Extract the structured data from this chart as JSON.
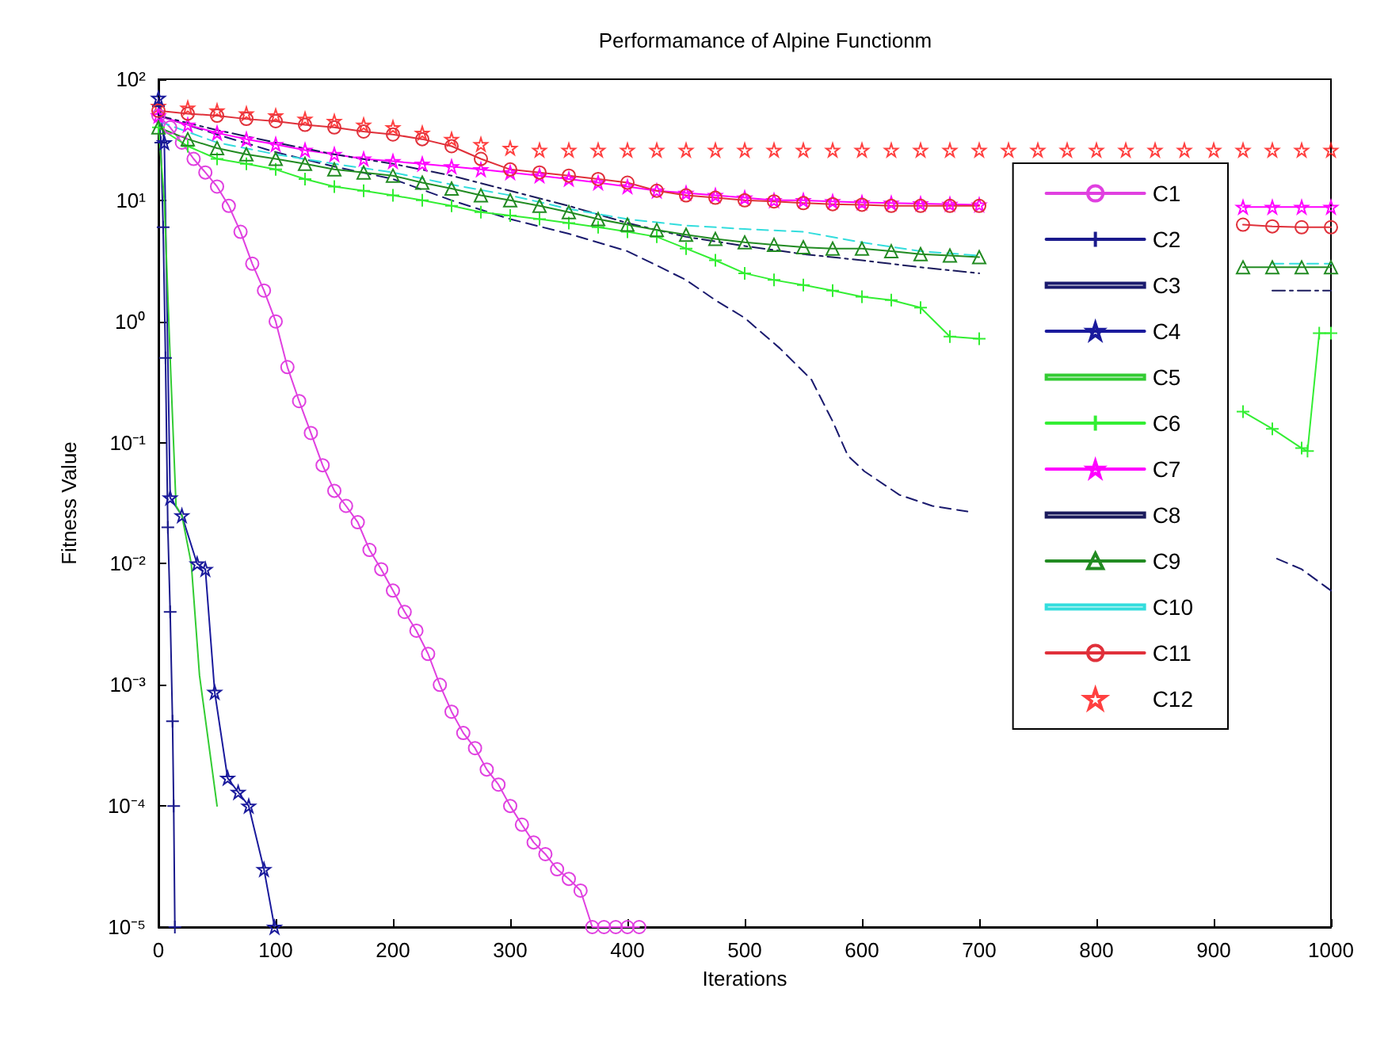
{
  "chart_data": {
    "type": "line",
    "title": "Performamance of Alpine Functionm",
    "xlabel": "Iterations",
    "ylabel": "Fitness Value",
    "xlim": [
      0,
      1000
    ],
    "xticks": [
      0,
      100,
      200,
      300,
      400,
      500,
      600,
      700,
      800,
      900,
      1000
    ],
    "ylim": [
      1e-05,
      100
    ],
    "yticks": [
      {
        "value": 1e-05,
        "label": "10⁻⁵"
      },
      {
        "value": 0.0001,
        "label": "10⁻⁴"
      },
      {
        "value": 0.001,
        "label": "10⁻³"
      },
      {
        "value": 0.01,
        "label": "10⁻²"
      },
      {
        "value": 0.1,
        "label": "10⁻¹"
      },
      {
        "value": 1,
        "label": "10⁰"
      },
      {
        "value": 10,
        "label": "10¹"
      },
      {
        "value": 100,
        "label": "10²"
      }
    ],
    "log": "y",
    "grid": false,
    "legend": "right",
    "series": [
      {
        "name": "C1",
        "color": "#e040e0",
        "marker": "circle",
        "line_style": "solid",
        "x": [
          0,
          10,
          20,
          30,
          40,
          50,
          60,
          70,
          80,
          90,
          100,
          110,
          120,
          130,
          140,
          150,
          160,
          170,
          180,
          190,
          200,
          210,
          220,
          230,
          240,
          250,
          260,
          270,
          280,
          290,
          300,
          310,
          320,
          330,
          340,
          350,
          360,
          370,
          380,
          390,
          400,
          410
        ],
        "values": [
          50,
          40,
          30,
          22,
          17,
          13,
          9,
          5.5,
          3,
          1.8,
          1.0,
          0.42,
          0.22,
          0.12,
          0.065,
          0.04,
          0.03,
          0.022,
          0.013,
          0.009,
          0.006,
          0.004,
          0.0028,
          0.0018,
          0.001,
          0.0006,
          0.0004,
          0.0003,
          0.0002,
          0.00015,
          0.0001,
          7e-05,
          5e-05,
          4e-05,
          3e-05,
          2.5e-05,
          2e-05,
          1e-05,
          1e-05,
          1e-05,
          1e-05,
          1e-05
        ]
      },
      {
        "name": "C2",
        "color": "#1a1a8c",
        "marker": "cross",
        "line_style": "solid",
        "x": [
          0,
          2,
          4,
          6,
          8,
          10,
          12,
          13,
          14
        ],
        "values": [
          60,
          30,
          6,
          0.5,
          0.02,
          0.004,
          0.0005,
          0.0001,
          1e-05
        ]
      },
      {
        "name": "C3",
        "color": "#1a1a6e",
        "marker": "none",
        "line_style": "dashed",
        "x": [
          0,
          50,
          100,
          150,
          200,
          250,
          300,
          350,
          400,
          425,
          450,
          475,
          500,
          530,
          557,
          575,
          588,
          602,
          632,
          660,
          690,
          750,
          800,
          850,
          880,
          910,
          954,
          975,
          1000
        ],
        "values": [
          50,
          35,
          25,
          19,
          15,
          10,
          7,
          5.3,
          3.8,
          2.9,
          2.2,
          1.5,
          1.07,
          0.6,
          0.33,
          0.15,
          0.078,
          0.058,
          0.037,
          0.03,
          0.027,
          null,
          null,
          null,
          null,
          null,
          0.011,
          0.009,
          0.006
        ]
      },
      {
        "name": "C4",
        "color": "#1a1a9c",
        "marker": "star",
        "line_style": "solid",
        "x": [
          0,
          5,
          10,
          20,
          33,
          40,
          48,
          59,
          68,
          77,
          90,
          99
        ],
        "values": [
          70,
          30,
          0.035,
          0.025,
          0.01,
          0.009,
          0.00087,
          0.00017,
          0.00013,
          0.0001,
          3e-05,
          1e-05
        ]
      },
      {
        "name": "C5",
        "color": "#33cc33",
        "marker": "none",
        "line_style": "solid",
        "x": [
          0,
          5,
          10,
          15,
          20,
          28,
          35,
          50
        ],
        "values": [
          40,
          10,
          0.5,
          0.03,
          0.025,
          0.01,
          0.0012,
          0.0001
        ]
      },
      {
        "name": "C6",
        "color": "#33ee33",
        "marker": "cross",
        "line_style": "solid",
        "x": [
          0,
          25,
          50,
          75,
          100,
          125,
          150,
          175,
          200,
          225,
          250,
          275,
          300,
          325,
          350,
          375,
          400,
          425,
          450,
          475,
          500,
          525,
          550,
          575,
          600,
          625,
          650,
          675,
          700,
          725,
          750,
          775,
          800,
          825,
          850,
          875,
          900,
          925,
          950,
          975,
          980,
          990,
          1000
        ],
        "values": [
          40,
          28,
          22,
          20,
          18,
          15,
          13,
          12,
          11,
          10,
          9,
          8,
          7.5,
          7,
          6.5,
          6,
          5.5,
          5,
          4,
          3.2,
          2.5,
          2.2,
          2,
          1.8,
          1.6,
          1.5,
          1.3,
          0.75,
          0.72,
          null,
          null,
          null,
          null,
          null,
          null,
          null,
          null,
          0.18,
          0.13,
          0.09,
          0.085,
          0.8,
          0.8
        ]
      },
      {
        "name": "C7",
        "color": "#ff00ff",
        "marker": "star",
        "line_style": "solid",
        "x": [
          0,
          25,
          50,
          75,
          100,
          125,
          150,
          175,
          200,
          225,
          250,
          275,
          300,
          325,
          350,
          375,
          400,
          425,
          450,
          475,
          500,
          525,
          550,
          575,
          600,
          625,
          650,
          675,
          700,
          725,
          750,
          775,
          800,
          825,
          850,
          875,
          900,
          925,
          950,
          975,
          1000
        ],
        "values": [
          50,
          42,
          36,
          32,
          29,
          26,
          24,
          22,
          21,
          20,
          19,
          18,
          17,
          16,
          15,
          14,
          13,
          12,
          11.5,
          11,
          10.5,
          10,
          10,
          9.8,
          9.6,
          9.5,
          9.4,
          9.3,
          9.2,
          null,
          null,
          null,
          null,
          null,
          null,
          null,
          null,
          8.8,
          8.8,
          8.8,
          8.8
        ]
      },
      {
        "name": "C8",
        "color": "#1a1a5c",
        "marker": "none",
        "line_style": "dashdot",
        "x": [
          0,
          50,
          100,
          150,
          200,
          250,
          300,
          350,
          400,
          450,
          500,
          550,
          600,
          650,
          700,
          750,
          800,
          850,
          900,
          950,
          1000
        ],
        "values": [
          50,
          38,
          30,
          24,
          20,
          16,
          12,
          9,
          6.5,
          5,
          4.2,
          3.6,
          3.2,
          2.8,
          2.5,
          null,
          null,
          null,
          null,
          1.8,
          1.8
        ]
      },
      {
        "name": "C9",
        "color": "#228b22",
        "marker": "triangle",
        "line_style": "solid",
        "x": [
          0,
          25,
          50,
          75,
          100,
          125,
          150,
          175,
          200,
          225,
          250,
          275,
          300,
          325,
          350,
          375,
          400,
          425,
          450,
          475,
          500,
          525,
          550,
          575,
          600,
          625,
          650,
          675,
          700,
          725,
          750,
          775,
          800,
          825,
          850,
          875,
          900,
          925,
          950,
          975,
          1000
        ],
        "values": [
          40,
          32,
          27,
          24,
          22,
          20,
          18,
          17,
          16,
          14,
          12.5,
          11,
          10,
          9,
          8,
          7,
          6.3,
          5.7,
          5.2,
          4.8,
          4.5,
          4.3,
          4.1,
          4,
          4,
          3.8,
          3.6,
          3.5,
          3.4,
          null,
          null,
          null,
          null,
          null,
          null,
          null,
          null,
          2.8,
          2.8,
          2.8,
          2.8
        ]
      },
      {
        "name": "C10",
        "color": "#33dddd",
        "marker": "none",
        "line_style": "dashed",
        "x": [
          0,
          50,
          100,
          150,
          200,
          250,
          300,
          350,
          400,
          450,
          500,
          550,
          600,
          650,
          700,
          750,
          800,
          850,
          900,
          950,
          1000
        ],
        "values": [
          45,
          30,
          24,
          20,
          17,
          13.5,
          11,
          8.5,
          7,
          6.2,
          5.8,
          5.5,
          4.5,
          3.8,
          3.5,
          null,
          null,
          null,
          null,
          3,
          3
        ]
      },
      {
        "name": "C11",
        "color": "#e0303a",
        "marker": "circle",
        "line_style": "solid",
        "x": [
          0,
          25,
          50,
          75,
          100,
          125,
          150,
          175,
          200,
          225,
          250,
          275,
          300,
          325,
          350,
          375,
          400,
          425,
          450,
          475,
          500,
          525,
          550,
          575,
          600,
          625,
          650,
          675,
          700,
          725,
          750,
          775,
          800,
          825,
          850,
          875,
          900,
          925,
          950,
          975,
          1000
        ],
        "values": [
          55,
          52,
          50,
          47,
          45,
          42,
          40,
          37,
          35,
          32,
          28,
          22,
          18,
          17,
          16,
          15,
          14,
          12,
          11,
          10.5,
          10,
          9.8,
          9.5,
          9.3,
          9.2,
          9,
          9,
          9,
          9,
          null,
          null,
          null,
          null,
          null,
          null,
          null,
          null,
          6.3,
          6.1,
          6,
          6
        ]
      },
      {
        "name": "C12",
        "type": "scatter",
        "color": "#ff1010",
        "marker": "star",
        "x": [
          0,
          25,
          50,
          75,
          100,
          125,
          150,
          175,
          200,
          225,
          250,
          275,
          300,
          325,
          350,
          375,
          400,
          425,
          450,
          475,
          500,
          525,
          550,
          575,
          600,
          625,
          650,
          675,
          700,
          725,
          750,
          775,
          800,
          825,
          850,
          875,
          900,
          925,
          950,
          975,
          1000
        ],
        "values": [
          60,
          58,
          55,
          52,
          50,
          47,
          45,
          42,
          40,
          36,
          32,
          29,
          27,
          26,
          26,
          26,
          26,
          26,
          26,
          26,
          26,
          26,
          26,
          26,
          26,
          26,
          26,
          26,
          26,
          26,
          26,
          26,
          26,
          26,
          26,
          26,
          26,
          26,
          26,
          26,
          26
        ]
      }
    ]
  }
}
